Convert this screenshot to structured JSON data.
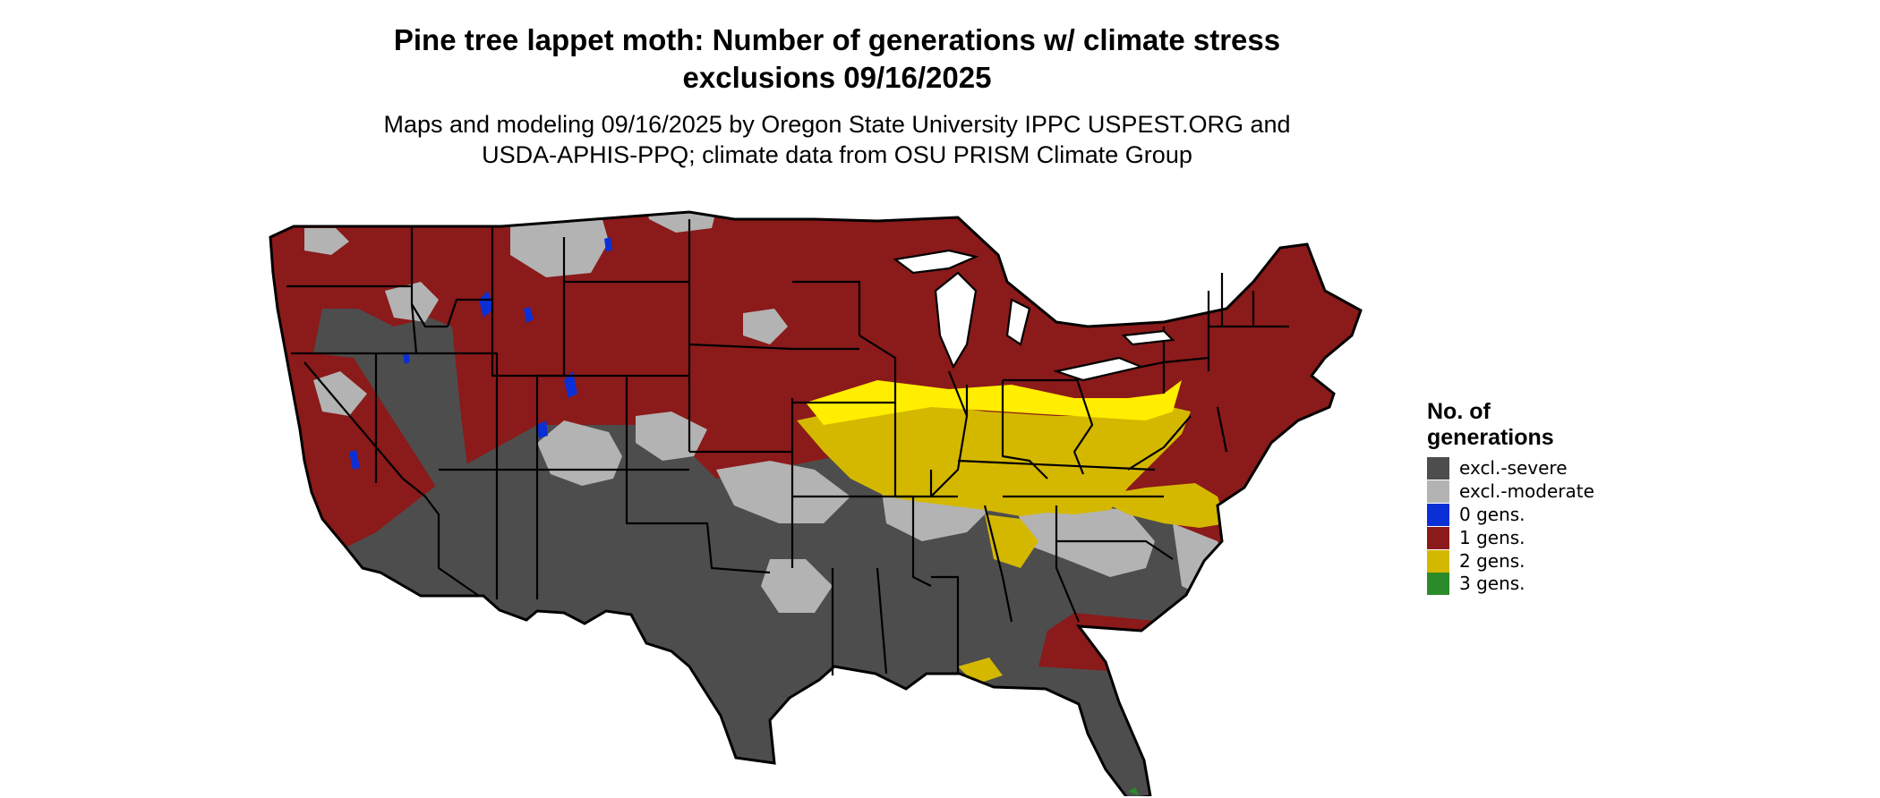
{
  "title": {
    "line1": "Pine tree lappet moth: Number of generations w/ climate stress",
    "line2": "exclusions 09/16/2025"
  },
  "subtitle": {
    "line1": "Maps and modeling 09/16/2025 by Oregon State University IPPC USPEST.ORG and",
    "line2": "USDA-APHIS-PPQ; climate data from OSU PRISM Climate Group"
  },
  "legend": {
    "title": "No. of generations",
    "items": [
      {
        "label": "excl.-severe",
        "color": "#4d4d4d"
      },
      {
        "label": "excl.-moderate",
        "color": "#b3b3b3"
      },
      {
        "label": "0 gens.",
        "color": "#0b2fd6"
      },
      {
        "label": "1 gens.",
        "color": "#8b1a1a"
      },
      {
        "label": "2 gens.",
        "color": "#d4b800"
      },
      {
        "label": "3 gens.",
        "color": "#2a8b2a"
      }
    ]
  },
  "colors": {
    "excl_severe": "#4d4d4d",
    "excl_moderate": "#b3b3b3",
    "gens_0": "#0b2fd6",
    "gens_1": "#8b1a1a",
    "gens_2": "#d4b800",
    "gens_2_bright": "#ffee00",
    "gens_3": "#2a8b2a",
    "border": "#000000"
  },
  "map": {
    "region": "Contiguous United States",
    "state_borders": true
  }
}
